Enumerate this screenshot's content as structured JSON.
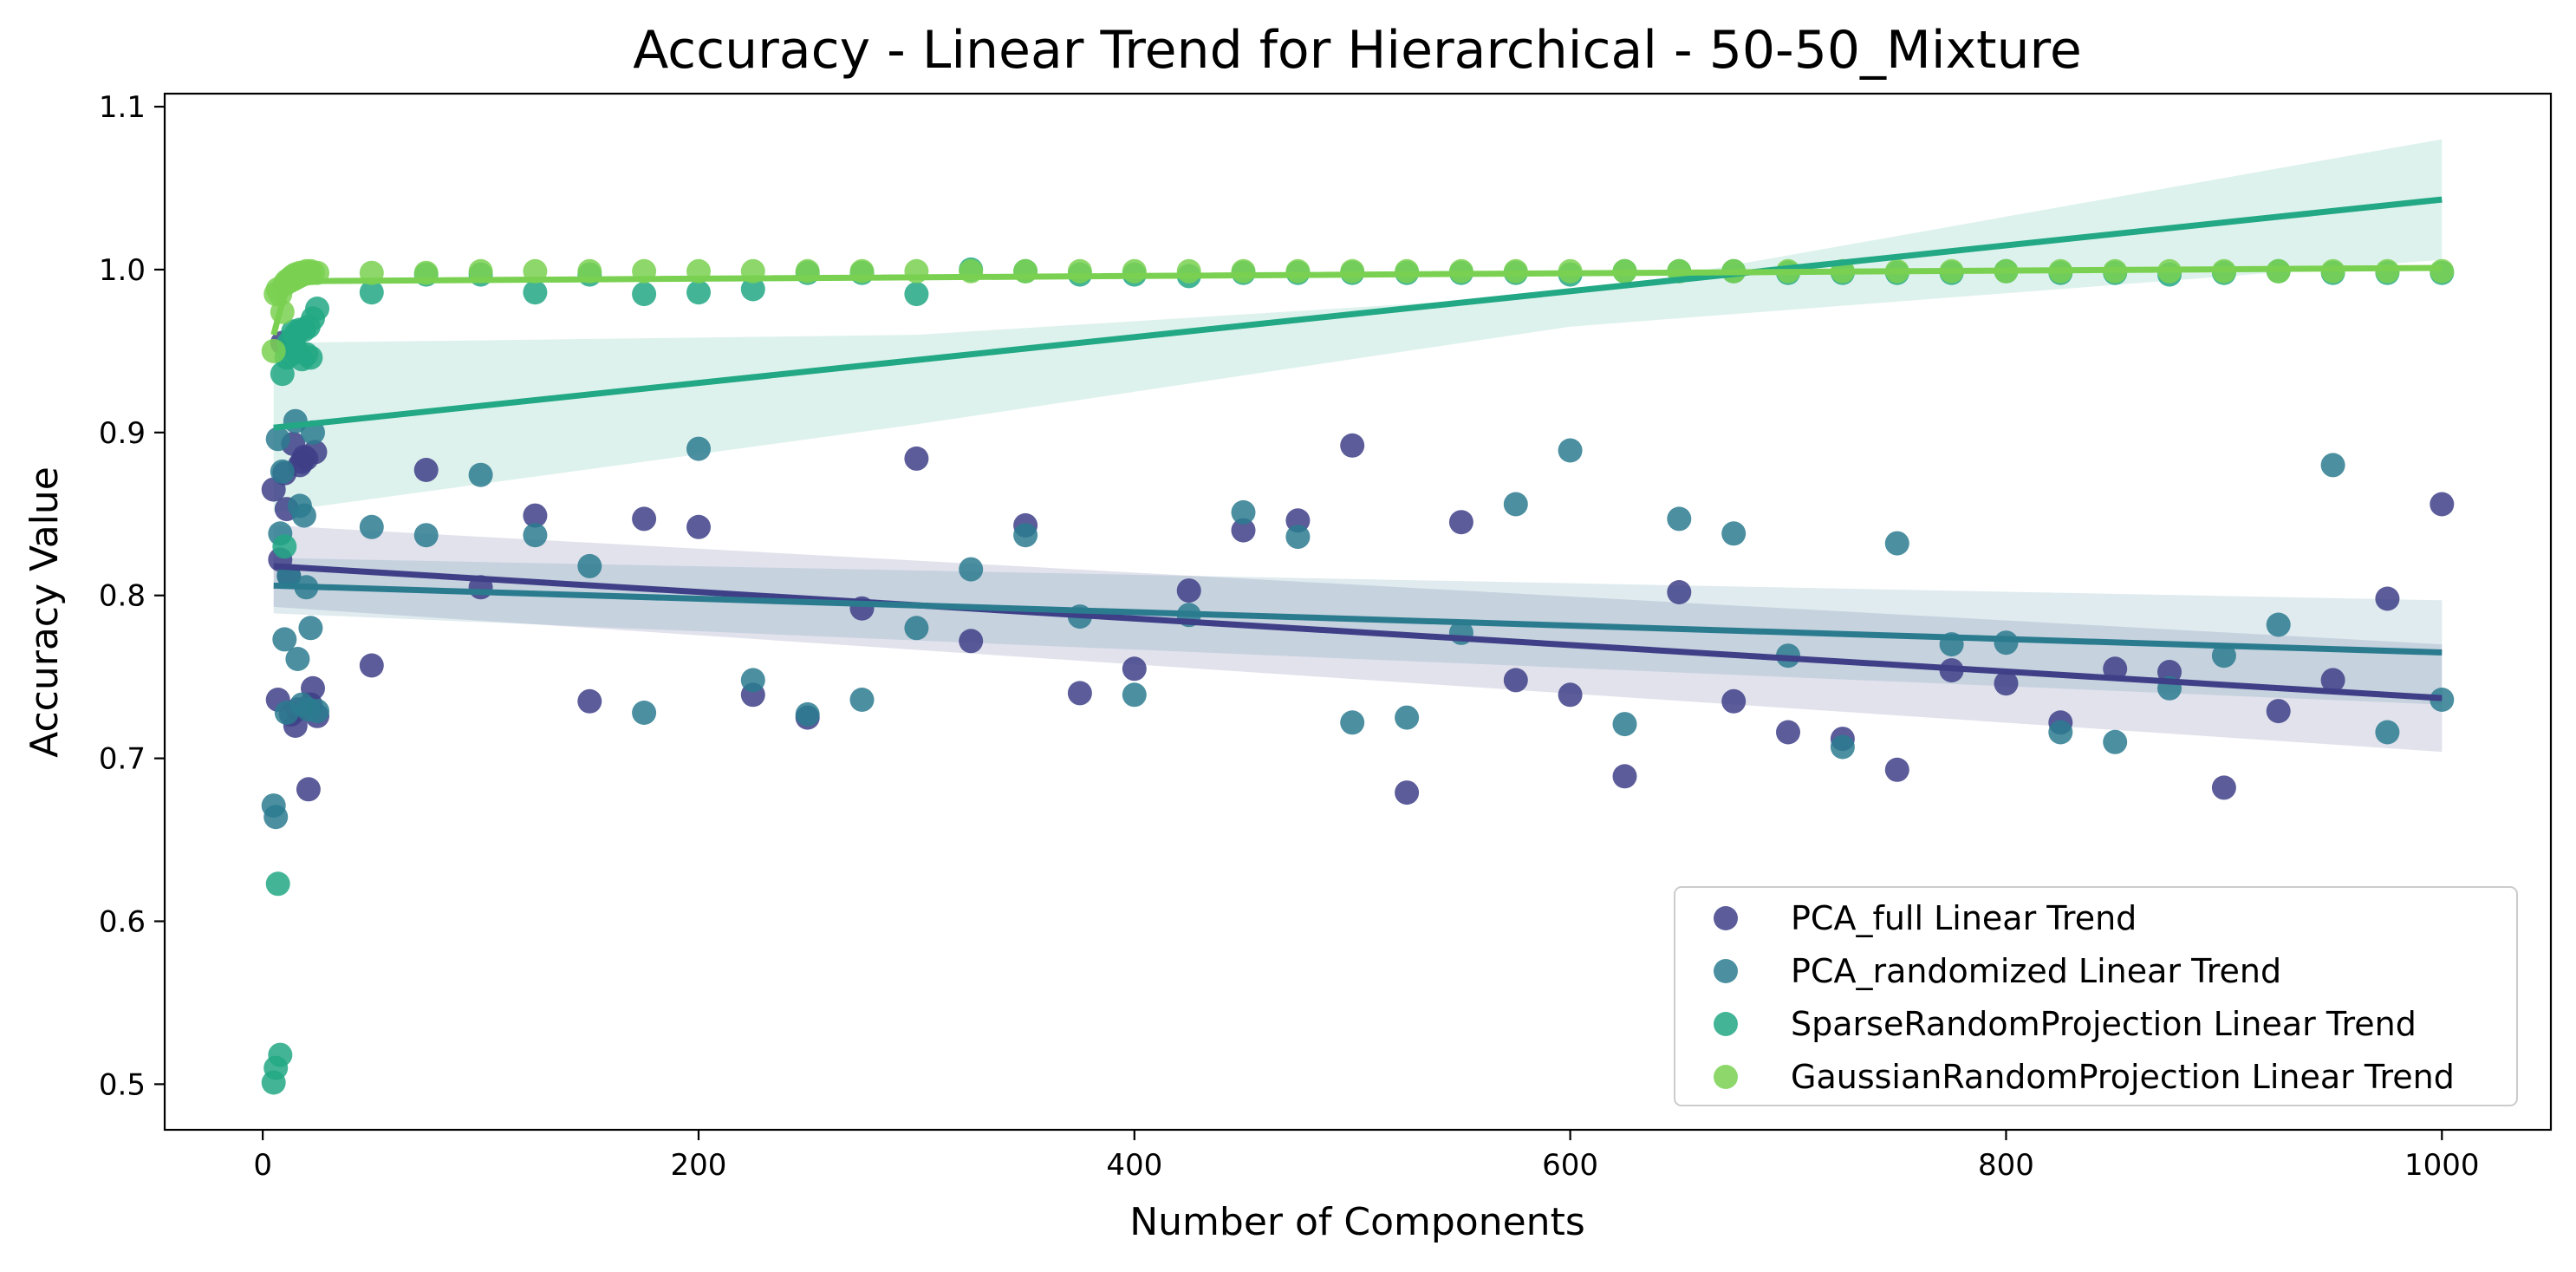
{
  "chart_data": {
    "type": "scatter",
    "title": "Accuracy - Linear Trend for Hierarchical - 50-50_Mixture",
    "xlabel": "Number of Components",
    "ylabel": "Accuracy Value",
    "xlim": [
      -45,
      1050
    ],
    "ylim": [
      0.472,
      1.108
    ],
    "xticks": [
      0,
      200,
      400,
      600,
      800,
      1000
    ],
    "yticks": [
      0.5,
      0.6,
      0.7,
      0.8,
      0.9,
      1.0,
      1.1
    ],
    "xtick_labels": [
      "0",
      "200",
      "400",
      "600",
      "800",
      "1000"
    ],
    "ytick_labels": [
      "0.5",
      "0.6",
      "0.7",
      "0.8",
      "0.9",
      "1.0",
      "1.1"
    ],
    "grid": false,
    "legend_position": "lower-right",
    "series": [
      {
        "name": "PCA_full Linear Trend",
        "color": "#3e3f87",
        "trend": {
          "x": [
            5,
            1000
          ],
          "y": [
            0.818,
            0.737
          ]
        },
        "ci": {
          "x": [
            5,
            1000
          ],
          "upper": [
            0.843,
            0.77
          ],
          "lower": [
            0.793,
            0.704
          ]
        },
        "points": [
          [
            5,
            0.865
          ],
          [
            7,
            0.736
          ],
          [
            8,
            0.822
          ],
          [
            9,
            0.955
          ],
          [
            10,
            0.875
          ],
          [
            11,
            0.853
          ],
          [
            12,
            0.812
          ],
          [
            13,
            0.727
          ],
          [
            14,
            0.893
          ],
          [
            15,
            0.72
          ],
          [
            16,
            0.73
          ],
          [
            17,
            0.88
          ],
          [
            18,
            0.882
          ],
          [
            19,
            0.885
          ],
          [
            20,
            0.884
          ],
          [
            21,
            0.681
          ],
          [
            22,
            0.733
          ],
          [
            23,
            0.743
          ],
          [
            24,
            0.888
          ],
          [
            25,
            0.726
          ],
          [
            50,
            0.757
          ],
          [
            75,
            0.877
          ],
          [
            100,
            0.805
          ],
          [
            125,
            0.849
          ],
          [
            150,
            0.735
          ],
          [
            175,
            0.847
          ],
          [
            200,
            0.842
          ],
          [
            225,
            0.739
          ],
          [
            250,
            0.725
          ],
          [
            275,
            0.792
          ],
          [
            300,
            0.884
          ],
          [
            325,
            0.772
          ],
          [
            350,
            0.843
          ],
          [
            375,
            0.74
          ],
          [
            400,
            0.755
          ],
          [
            425,
            0.803
          ],
          [
            450,
            0.84
          ],
          [
            475,
            0.846
          ],
          [
            500,
            0.892
          ],
          [
            525,
            0.679
          ],
          [
            550,
            0.845
          ],
          [
            575,
            0.748
          ],
          [
            600,
            0.739
          ],
          [
            625,
            0.689
          ],
          [
            650,
            0.802
          ],
          [
            675,
            0.735
          ],
          [
            700,
            0.716
          ],
          [
            725,
            0.712
          ],
          [
            750,
            0.693
          ],
          [
            775,
            0.754
          ],
          [
            800,
            0.746
          ],
          [
            825,
            0.722
          ],
          [
            850,
            0.755
          ],
          [
            875,
            0.753
          ],
          [
            900,
            0.682
          ],
          [
            925,
            0.729
          ],
          [
            950,
            0.748
          ],
          [
            975,
            0.798
          ],
          [
            1000,
            0.856
          ]
        ]
      },
      {
        "name": "PCA_randomized Linear Trend",
        "color": "#2b7b8f",
        "trend": {
          "x": [
            5,
            1000
          ],
          "y": [
            0.806,
            0.765
          ]
        },
        "ci": {
          "x": [
            5,
            1000
          ],
          "upper": [
            0.823,
            0.797
          ],
          "lower": [
            0.789,
            0.733
          ]
        },
        "points": [
          [
            5,
            0.671
          ],
          [
            6,
            0.664
          ],
          [
            7,
            0.896
          ],
          [
            8,
            0.838
          ],
          [
            9,
            0.876
          ],
          [
            10,
            0.773
          ],
          [
            11,
            0.728
          ],
          [
            12,
            0.812
          ],
          [
            13,
            0.955
          ],
          [
            14,
            0.953
          ],
          [
            15,
            0.907
          ],
          [
            16,
            0.761
          ],
          [
            17,
            0.855
          ],
          [
            18,
            0.733
          ],
          [
            19,
            0.849
          ],
          [
            20,
            0.805
          ],
          [
            21,
            0.73
          ],
          [
            22,
            0.78
          ],
          [
            23,
            0.9
          ],
          [
            25,
            0.729
          ],
          [
            50,
            0.842
          ],
          [
            75,
            0.837
          ],
          [
            100,
            0.874
          ],
          [
            125,
            0.837
          ],
          [
            150,
            0.818
          ],
          [
            175,
            0.728
          ],
          [
            200,
            0.89
          ],
          [
            225,
            0.748
          ],
          [
            250,
            0.727
          ],
          [
            275,
            0.736
          ],
          [
            300,
            0.78
          ],
          [
            325,
            0.816
          ],
          [
            350,
            0.837
          ],
          [
            375,
            0.787
          ],
          [
            400,
            0.739
          ],
          [
            425,
            0.788
          ],
          [
            450,
            0.851
          ],
          [
            475,
            0.836
          ],
          [
            500,
            0.722
          ],
          [
            525,
            0.725
          ],
          [
            550,
            0.777
          ],
          [
            575,
            0.856
          ],
          [
            600,
            0.889
          ],
          [
            625,
            0.721
          ],
          [
            650,
            0.847
          ],
          [
            675,
            0.838
          ],
          [
            700,
            0.763
          ],
          [
            725,
            0.707
          ],
          [
            750,
            0.832
          ],
          [
            775,
            0.77
          ],
          [
            800,
            0.771
          ],
          [
            825,
            0.716
          ],
          [
            850,
            0.71
          ],
          [
            875,
            0.743
          ],
          [
            900,
            0.763
          ],
          [
            925,
            0.782
          ],
          [
            950,
            0.88
          ],
          [
            975,
            0.716
          ],
          [
            1000,
            0.736
          ]
        ]
      },
      {
        "name": "SparseRandomProjection Linear Trend",
        "color": "#22a884",
        "trend": {
          "x": [
            5,
            1000
          ],
          "y": [
            0.903,
            1.043
          ]
        },
        "ci": {
          "x": [
            5,
            300,
            600,
            1000
          ],
          "upper": [
            0.955,
            0.96,
            0.985,
            1.08
          ],
          "lower": [
            0.851,
            0.905,
            0.965,
            1.006
          ]
        },
        "points": [
          [
            5,
            0.501
          ],
          [
            6,
            0.51
          ],
          [
            7,
            0.623
          ],
          [
            8,
            0.518
          ],
          [
            9,
            0.936
          ],
          [
            10,
            0.83
          ],
          [
            11,
            0.946
          ],
          [
            12,
            0.955
          ],
          [
            13,
            0.948
          ],
          [
            14,
            0.962
          ],
          [
            15,
            0.96
          ],
          [
            16,
            0.95
          ],
          [
            17,
            0.963
          ],
          [
            18,
            0.945
          ],
          [
            19,
            0.963
          ],
          [
            20,
            0.948
          ],
          [
            21,
            0.965
          ],
          [
            22,
            0.946
          ],
          [
            23,
            0.97
          ],
          [
            25,
            0.976
          ],
          [
            50,
            0.986
          ],
          [
            75,
            0.997
          ],
          [
            100,
            0.997
          ],
          [
            125,
            0.986
          ],
          [
            150,
            0.997
          ],
          [
            175,
            0.985
          ],
          [
            200,
            0.986
          ],
          [
            225,
            0.988
          ],
          [
            250,
            0.998
          ],
          [
            275,
            0.998
          ],
          [
            300,
            0.985
          ],
          [
            325,
            1.0
          ],
          [
            350,
            0.999
          ],
          [
            375,
            0.997
          ],
          [
            400,
            0.997
          ],
          [
            425,
            0.996
          ],
          [
            450,
            0.998
          ],
          [
            475,
            0.998
          ],
          [
            500,
            0.998
          ],
          [
            525,
            0.998
          ],
          [
            550,
            0.998
          ],
          [
            575,
            0.998
          ],
          [
            600,
            0.997
          ],
          [
            625,
            0.999
          ],
          [
            650,
            0.999
          ],
          [
            675,
            0.999
          ],
          [
            700,
            0.998
          ],
          [
            725,
            0.998
          ],
          [
            750,
            0.998
          ],
          [
            775,
            0.998
          ],
          [
            800,
            0.999
          ],
          [
            825,
            0.998
          ],
          [
            850,
            0.998
          ],
          [
            875,
            0.997
          ],
          [
            900,
            0.998
          ],
          [
            925,
            0.999
          ],
          [
            950,
            0.998
          ],
          [
            975,
            0.998
          ],
          [
            1000,
            0.998
          ]
        ]
      },
      {
        "name": "GaussianRandomProjection Linear Trend",
        "color": "#7ad151",
        "trend": {
          "x": [
            5,
            10,
            20,
            25,
            1000
          ],
          "y": [
            0.96,
            0.985,
            0.992,
            0.993,
            1.001
          ]
        },
        "ci": null,
        "points": [
          [
            5,
            0.95
          ],
          [
            6,
            0.985
          ],
          [
            7,
            0.988
          ],
          [
            8,
            0.985
          ],
          [
            9,
            0.974
          ],
          [
            10,
            0.991
          ],
          [
            11,
            0.993
          ],
          [
            12,
            0.993
          ],
          [
            13,
            0.995
          ],
          [
            14,
            0.996
          ],
          [
            15,
            0.997
          ],
          [
            16,
            0.997
          ],
          [
            17,
            0.998
          ],
          [
            18,
            0.997
          ],
          [
            19,
            0.998
          ],
          [
            20,
            0.999
          ],
          [
            21,
            0.998
          ],
          [
            22,
            0.999
          ],
          [
            23,
            0.998
          ],
          [
            25,
            0.998
          ],
          [
            50,
            0.998
          ],
          [
            75,
            0.998
          ],
          [
            100,
            0.999
          ],
          [
            125,
            0.999
          ],
          [
            150,
            0.999
          ],
          [
            175,
            0.999
          ],
          [
            200,
            0.999
          ],
          [
            225,
            0.999
          ],
          [
            250,
            0.999
          ],
          [
            275,
            0.999
          ],
          [
            300,
            0.999
          ],
          [
            325,
            0.999
          ],
          [
            350,
            0.999
          ],
          [
            375,
            0.999
          ],
          [
            400,
            0.999
          ],
          [
            425,
            0.999
          ],
          [
            450,
            0.999
          ],
          [
            475,
            0.999
          ],
          [
            500,
            0.999
          ],
          [
            525,
            0.999
          ],
          [
            550,
            0.999
          ],
          [
            575,
            0.999
          ],
          [
            600,
            0.999
          ],
          [
            625,
            0.999
          ],
          [
            650,
            0.999
          ],
          [
            675,
            0.999
          ],
          [
            700,
            0.999
          ],
          [
            725,
            0.999
          ],
          [
            750,
            0.999
          ],
          [
            775,
            0.999
          ],
          [
            800,
            0.999
          ],
          [
            825,
            0.999
          ],
          [
            850,
            0.999
          ],
          [
            875,
            0.999
          ],
          [
            900,
            0.999
          ],
          [
            925,
            0.999
          ],
          [
            950,
            0.999
          ],
          [
            975,
            0.999
          ],
          [
            1000,
            0.999
          ]
        ]
      }
    ]
  }
}
